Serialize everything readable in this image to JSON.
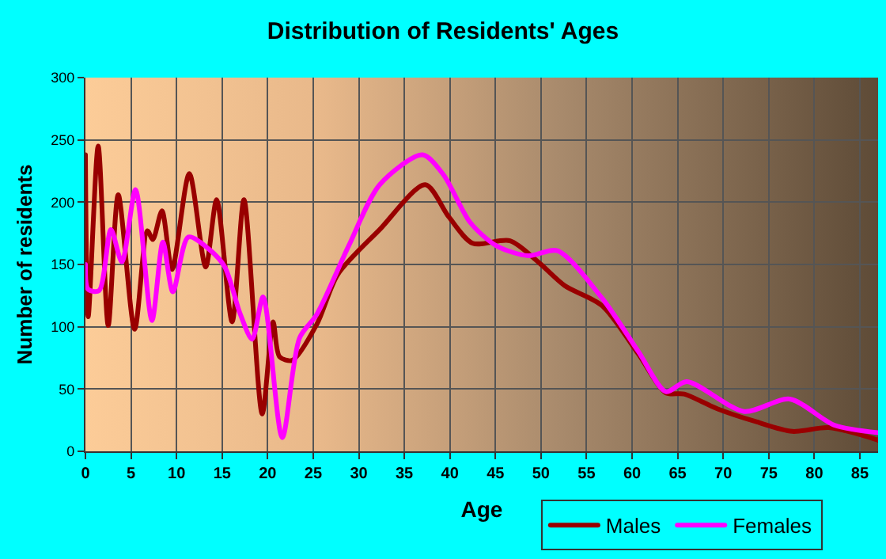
{
  "chart_data": {
    "type": "line",
    "title": "Distribution of Residents' Ages",
    "xlabel": "Age",
    "ylabel": "Number of residents",
    "xlim": [
      0,
      87
    ],
    "xticks": [
      0,
      5,
      10,
      15,
      20,
      25,
      30,
      35,
      40,
      45,
      50,
      55,
      60,
      65,
      70,
      75,
      80,
      85
    ],
    "ylim": [
      0,
      300
    ],
    "yticks": [
      0,
      50,
      100,
      150,
      200,
      250,
      300
    ],
    "grid": true,
    "legend": "bottom right",
    "marker": "none",
    "line_style": "solid",
    "series": [
      {
        "name": "Males",
        "color": "#990000",
        "x": [
          0,
          0.3,
          1.4,
          2.5,
          3.6,
          5.4,
          6.8,
          7.4,
          8.4,
          9.5,
          11.4,
          13.2,
          14.4,
          16.1,
          17.4,
          19.4,
          20.6,
          21.3,
          22.7,
          25.4,
          27.7,
          32.3,
          37.3,
          39.9,
          42.5,
          46.6,
          49.7,
          52.6,
          56.7,
          60.7,
          63.7,
          65.7,
          69.4,
          73.5,
          77.6,
          81.6,
          87
        ],
        "values": [
          238,
          108,
          245,
          101,
          206,
          98,
          177,
          170,
          193,
          146,
          223,
          148,
          202,
          104,
          202,
          30,
          104,
          76,
          73,
          102,
          142,
          178,
          214,
          188,
          167,
          169,
          152,
          133,
          117,
          78,
          47,
          46,
          34,
          24,
          16,
          19,
          9
        ]
      },
      {
        "name": "Females",
        "color": "#ff00ff",
        "x": [
          0,
          0.3,
          1.5,
          2.8,
          4.0,
          5.5,
          7.3,
          8.5,
          9.6,
          11.3,
          13.6,
          15.3,
          17,
          18.3,
          19.5,
          21.6,
          23.5,
          25.4,
          28.9,
          32.3,
          37,
          39.3,
          42.2,
          45.1,
          48.6,
          51.8,
          56.7,
          60.7,
          63.7,
          66,
          72.3,
          77.3,
          82.2,
          87
        ],
        "values": [
          150,
          130,
          129,
          178,
          152,
          210,
          105,
          168,
          128,
          172,
          162,
          148,
          110,
          90,
          124,
          11,
          91,
          110,
          165,
          214,
          238,
          222,
          184,
          165,
          157,
          161,
          123,
          80,
          48,
          56,
          32,
          42,
          21,
          15
        ]
      }
    ]
  }
}
